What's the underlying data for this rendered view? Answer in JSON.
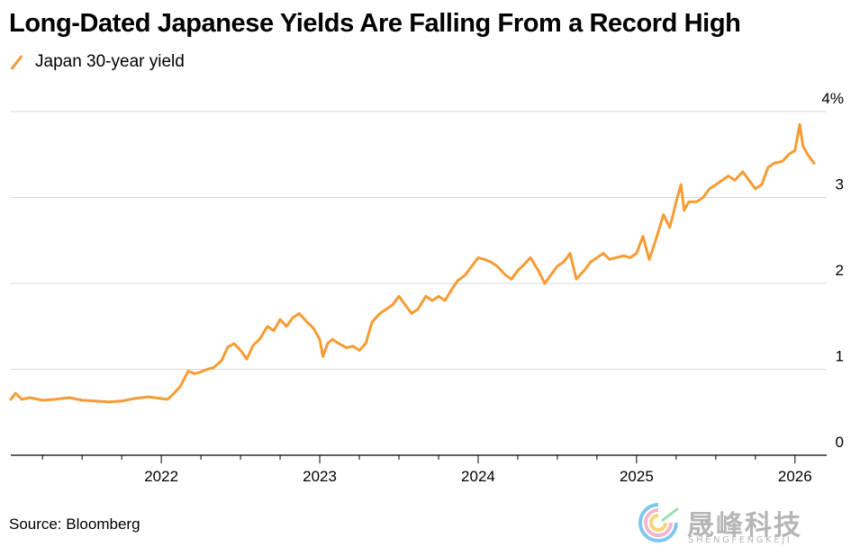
{
  "title": "Long-Dated Japanese Yields Are Falling From a Record High",
  "legend": {
    "label": "Japan 30-year yield"
  },
  "source": "Source: Bloomberg",
  "watermark": {
    "text": "晟峰科技",
    "subtext": "SHENGFENGKEJI"
  },
  "colors": {
    "series": "#f59c34",
    "grid": "#d9d9d9",
    "axis": "#000000"
  },
  "chart_data": {
    "type": "line",
    "title": "Long-Dated Japanese Yields Are Falling From a Record High",
    "xlabel": "",
    "ylabel": "",
    "unit": "%",
    "ylim": [
      0,
      4
    ],
    "xlim": [
      2021.05,
      2026.2
    ],
    "y_ticks": [
      {
        "value": 0,
        "label": "0"
      },
      {
        "value": 1,
        "label": "1"
      },
      {
        "value": 2,
        "label": "2"
      },
      {
        "value": 3,
        "label": "3"
      },
      {
        "value": 4,
        "label": "4%"
      }
    ],
    "x_ticks": [
      {
        "value": 2022,
        "label": "2022"
      },
      {
        "value": 2023,
        "label": "2023"
      },
      {
        "value": 2024,
        "label": "2024"
      },
      {
        "value": 2025,
        "label": "2025"
      },
      {
        "value": 2026,
        "label": "2026"
      }
    ],
    "grid": true,
    "legend_position": "top-left",
    "series": [
      {
        "name": "Japan 30-year yield",
        "x": [
          2021.05,
          2021.08,
          2021.12,
          2021.17,
          2021.25,
          2021.33,
          2021.42,
          2021.5,
          2021.58,
          2021.67,
          2021.75,
          2021.83,
          2021.92,
          2022.0,
          2022.04,
          2022.08,
          2022.12,
          2022.17,
          2022.21,
          2022.25,
          2022.29,
          2022.33,
          2022.38,
          2022.42,
          2022.46,
          2022.5,
          2022.54,
          2022.58,
          2022.62,
          2022.67,
          2022.71,
          2022.75,
          2022.79,
          2022.83,
          2022.87,
          2022.92,
          2022.96,
          2023.0,
          2023.02,
          2023.05,
          2023.08,
          2023.12,
          2023.17,
          2023.21,
          2023.25,
          2023.29,
          2023.33,
          2023.38,
          2023.42,
          2023.46,
          2023.5,
          2023.54,
          2023.58,
          2023.62,
          2023.67,
          2023.71,
          2023.75,
          2023.79,
          2023.83,
          2023.87,
          2023.92,
          2023.96,
          2024.0,
          2024.04,
          2024.08,
          2024.12,
          2024.17,
          2024.21,
          2024.25,
          2024.29,
          2024.33,
          2024.38,
          2024.42,
          2024.46,
          2024.5,
          2024.54,
          2024.58,
          2024.6,
          2024.62,
          2024.67,
          2024.71,
          2024.75,
          2024.79,
          2024.83,
          2024.87,
          2024.92,
          2024.96,
          2025.0,
          2025.04,
          2025.08,
          2025.12,
          2025.17,
          2025.21,
          2025.25,
          2025.28,
          2025.3,
          2025.33,
          2025.38,
          2025.42,
          2025.46,
          2025.5,
          2025.54,
          2025.58,
          2025.62,
          2025.67,
          2025.71,
          2025.75,
          2025.79,
          2025.83,
          2025.87,
          2025.92,
          2025.96,
          2026.0,
          2026.03,
          2026.05,
          2026.08,
          2026.12
        ],
        "values": [
          0.65,
          0.72,
          0.65,
          0.67,
          0.64,
          0.65,
          0.67,
          0.64,
          0.63,
          0.62,
          0.63,
          0.66,
          0.68,
          0.66,
          0.65,
          0.72,
          0.8,
          0.98,
          0.95,
          0.97,
          1.0,
          1.02,
          1.1,
          1.26,
          1.3,
          1.22,
          1.12,
          1.28,
          1.35,
          1.5,
          1.45,
          1.58,
          1.5,
          1.6,
          1.65,
          1.55,
          1.48,
          1.35,
          1.15,
          1.3,
          1.35,
          1.3,
          1.25,
          1.27,
          1.22,
          1.3,
          1.55,
          1.65,
          1.7,
          1.75,
          1.85,
          1.75,
          1.65,
          1.7,
          1.85,
          1.8,
          1.85,
          1.8,
          1.92,
          2.03,
          2.1,
          2.2,
          2.3,
          2.28,
          2.25,
          2.2,
          2.1,
          2.05,
          2.15,
          2.22,
          2.3,
          2.15,
          2.0,
          2.1,
          2.2,
          2.25,
          2.35,
          2.2,
          2.05,
          2.15,
          2.25,
          2.3,
          2.35,
          2.28,
          2.3,
          2.32,
          2.3,
          2.35,
          2.55,
          2.28,
          2.5,
          2.8,
          2.65,
          2.95,
          3.15,
          2.85,
          2.95,
          2.95,
          3.0,
          3.1,
          3.15,
          3.2,
          3.25,
          3.2,
          3.3,
          3.2,
          3.1,
          3.15,
          3.35,
          3.4,
          3.42,
          3.5,
          3.55,
          3.85,
          3.6,
          3.5,
          3.4
        ]
      }
    ]
  }
}
